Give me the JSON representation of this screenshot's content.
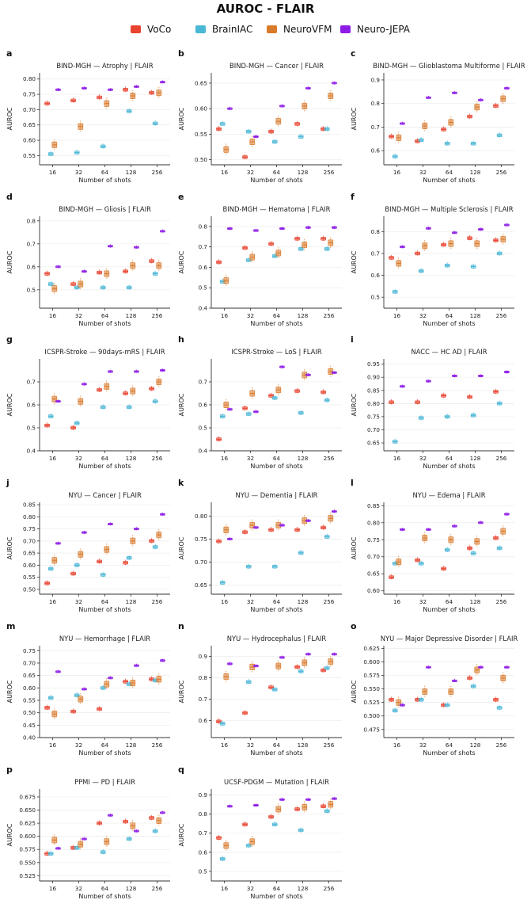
{
  "title": "AUROC - FLAIR",
  "legend": [
    {
      "name": "VoCo",
      "color": "#e8432f"
    },
    {
      "name": "BrainIAC",
      "color": "#4bb7d6"
    },
    {
      "name": "NeuroVFM",
      "color": "#d97a2b"
    },
    {
      "name": "Neuro-JEPA",
      "color": "#8e1ce6"
    }
  ],
  "chart_data": [
    {
      "letter": "a",
      "type": "box",
      "title": "BIND-MGH — Atrophy  |  FLAIR",
      "xlabel": "Number of shots",
      "ylabel": "AUROC",
      "categories": [
        "16",
        "32",
        "64",
        "128",
        "256"
      ],
      "ylim": [
        0.52,
        0.82
      ],
      "yticks": [
        0.55,
        0.6,
        0.65,
        0.7,
        0.75,
        0.8
      ],
      "grid": true,
      "series": {
        "VoCo": [
          0.72,
          0.73,
          0.74,
          0.765,
          0.755
        ],
        "BrainIAC": [
          0.555,
          0.56,
          0.58,
          0.695,
          0.655
        ],
        "NeuroVFM": [
          0.585,
          0.645,
          0.72,
          0.745,
          0.755
        ],
        "Neuro-JEPA": [
          0.765,
          0.77,
          0.765,
          0.775,
          0.79
        ]
      }
    },
    {
      "letter": "b",
      "type": "box",
      "title": "BIND-MGH — Cancer  |  FLAIR",
      "xlabel": "Number of shots",
      "ylabel": "AUROC",
      "categories": [
        "16",
        "32",
        "64",
        "128",
        "256"
      ],
      "ylim": [
        0.49,
        0.67
      ],
      "yticks": [
        0.5,
        0.55,
        0.6,
        0.65
      ],
      "grid": true,
      "series": {
        "VoCo": [
          0.56,
          0.505,
          0.555,
          0.57,
          0.56
        ],
        "BrainIAC": [
          0.57,
          0.555,
          0.535,
          0.545,
          0.56
        ],
        "NeuroVFM": [
          0.52,
          0.535,
          0.575,
          0.605,
          0.625
        ],
        "Neuro-JEPA": [
          0.6,
          0.545,
          0.605,
          0.64,
          0.65
        ]
      }
    },
    {
      "letter": "c",
      "type": "box",
      "title": "BIND-MGH — Glioblastoma Multiforme  |  FLAIR",
      "xlabel": "Number of shots",
      "ylabel": "AUROC",
      "categories": [
        "16",
        "32",
        "64",
        "128",
        "256"
      ],
      "ylim": [
        0.54,
        0.93
      ],
      "yticks": [
        0.6,
        0.7,
        0.8,
        0.9
      ],
      "grid": true,
      "series": {
        "VoCo": [
          0.66,
          0.64,
          0.69,
          0.745,
          0.79
        ],
        "BrainIAC": [
          0.575,
          0.645,
          0.63,
          0.63,
          0.665
        ],
        "NeuroVFM": [
          0.655,
          0.705,
          0.72,
          0.785,
          0.82
        ],
        "Neuro-JEPA": [
          0.715,
          0.825,
          0.845,
          0.815,
          0.865
        ]
      }
    },
    {
      "letter": "d",
      "type": "box",
      "title": "BIND-MGH — Gliosis  |  FLAIR",
      "xlabel": "Number of shots",
      "ylabel": "AUROC",
      "categories": [
        "16",
        "32",
        "64",
        "128",
        "256"
      ],
      "ylim": [
        0.42,
        0.82
      ],
      "yticks": [
        0.5,
        0.6,
        0.7,
        0.8
      ],
      "grid": true,
      "series": {
        "VoCo": [
          0.57,
          0.525,
          0.575,
          0.58,
          0.625
        ],
        "BrainIAC": [
          0.525,
          0.51,
          0.51,
          0.51,
          0.57
        ],
        "NeuroVFM": [
          0.505,
          0.525,
          0.57,
          0.605,
          0.605
        ],
        "Neuro-JEPA": [
          0.6,
          0.58,
          0.69,
          0.685,
          0.755
        ]
      }
    },
    {
      "letter": "e",
      "type": "box",
      "title": "BIND-MGH — Hematoma  |  FLAIR",
      "xlabel": "Number of shots",
      "ylabel": "AUROC",
      "categories": [
        "16",
        "32",
        "64",
        "128",
        "256"
      ],
      "ylim": [
        0.4,
        0.85
      ],
      "yticks": [
        0.4,
        0.5,
        0.6,
        0.7,
        0.8
      ],
      "grid": true,
      "series": {
        "VoCo": [
          0.625,
          0.695,
          0.715,
          0.74,
          0.74
        ],
        "BrainIAC": [
          0.53,
          0.635,
          0.655,
          0.69,
          0.69
        ],
        "NeuroVFM": [
          0.535,
          0.65,
          0.67,
          0.71,
          0.72
        ],
        "Neuro-JEPA": [
          0.79,
          0.78,
          0.79,
          0.795,
          0.795
        ]
      }
    },
    {
      "letter": "f",
      "type": "box",
      "title": "BIND-MGH — Multiple Sclerosis  |  FLAIR",
      "xlabel": "Number of shots",
      "ylabel": "AUROC",
      "categories": [
        "16",
        "32",
        "64",
        "128",
        "256"
      ],
      "ylim": [
        0.45,
        0.87
      ],
      "yticks": [
        0.5,
        0.6,
        0.7,
        0.8
      ],
      "grid": true,
      "series": {
        "VoCo": [
          0.68,
          0.7,
          0.74,
          0.77,
          0.76
        ],
        "BrainIAC": [
          0.525,
          0.62,
          0.645,
          0.64,
          0.7
        ],
        "NeuroVFM": [
          0.655,
          0.735,
          0.745,
          0.745,
          0.765
        ],
        "Neuro-JEPA": [
          0.73,
          0.815,
          0.795,
          0.81,
          0.83
        ]
      }
    },
    {
      "letter": "g",
      "type": "box",
      "title": "ICSPR-Stroke — 90days-mRS  |  FLAIR",
      "xlabel": "Number of shots",
      "ylabel": "AUROC",
      "categories": [
        "16",
        "32",
        "64",
        "128",
        "256"
      ],
      "ylim": [
        0.4,
        0.8
      ],
      "yticks": [
        0.4,
        0.5,
        0.6,
        0.7
      ],
      "grid": true,
      "series": {
        "VoCo": [
          0.51,
          0.5,
          0.665,
          0.65,
          0.67
        ],
        "BrainIAC": [
          0.55,
          0.52,
          0.59,
          0.59,
          0.615
        ],
        "NeuroVFM": [
          0.625,
          0.615,
          0.68,
          0.66,
          0.7
        ],
        "Neuro-JEPA": [
          0.615,
          0.69,
          0.745,
          0.745,
          0.75
        ]
      }
    },
    {
      "letter": "h",
      "type": "box",
      "title": "ICSPR-Stroke — LoS  |  FLAIR",
      "xlabel": "Number of shots",
      "ylabel": "AUROC",
      "categories": [
        "16",
        "32",
        "64",
        "128",
        "256"
      ],
      "ylim": [
        0.4,
        0.8
      ],
      "yticks": [
        0.4,
        0.5,
        0.6,
        0.7
      ],
      "grid": true,
      "series": {
        "VoCo": [
          0.45,
          0.585,
          0.64,
          0.66,
          0.655
        ],
        "BrainIAC": [
          0.55,
          0.56,
          0.63,
          0.565,
          0.62
        ],
        "NeuroVFM": [
          0.6,
          0.65,
          0.665,
          0.73,
          0.745
        ],
        "Neuro-JEPA": [
          0.58,
          0.57,
          0.765,
          0.73,
          0.74
        ]
      }
    },
    {
      "letter": "i",
      "type": "box",
      "title": "NACC — HC AD  |  FLAIR",
      "xlabel": "Number of shots",
      "ylabel": "AUROC",
      "categories": [
        "16",
        "32",
        "64",
        "128",
        "256"
      ],
      "ylim": [
        0.62,
        0.97
      ],
      "yticks": [
        0.65,
        0.7,
        0.75,
        0.8,
        0.85,
        0.9,
        0.95
      ],
      "grid": true,
      "series": {
        "VoCo": [
          0.805,
          0.805,
          0.83,
          0.825,
          0.845
        ],
        "BrainIAC": [
          0.655,
          0.745,
          0.75,
          0.755,
          0.8
        ],
        "Neuro-JEPA": [
          0.865,
          0.885,
          0.905,
          0.905,
          0.92
        ]
      }
    },
    {
      "letter": "j",
      "type": "box",
      "title": "NYU — Cancer  |  FLAIR",
      "xlabel": "Number of shots",
      "ylabel": "AUROC",
      "categories": [
        "16",
        "32",
        "64",
        "128",
        "256"
      ],
      "ylim": [
        0.48,
        0.86
      ],
      "yticks": [
        0.5,
        0.55,
        0.6,
        0.65,
        0.7,
        0.75,
        0.8,
        0.85
      ],
      "grid": true,
      "series": {
        "VoCo": [
          0.525,
          0.565,
          0.615,
          0.61,
          0.7
        ],
        "BrainIAC": [
          0.585,
          0.6,
          0.56,
          0.63,
          0.675
        ],
        "NeuroVFM": [
          0.62,
          0.645,
          0.665,
          0.7,
          0.725
        ],
        "Neuro-JEPA": [
          0.69,
          0.735,
          0.77,
          0.75,
          0.81
        ]
      }
    },
    {
      "letter": "k",
      "type": "box",
      "title": "NYU — Dementia  |  FLAIR",
      "xlabel": "Number of shots",
      "ylabel": "AUROC",
      "categories": [
        "16",
        "32",
        "64",
        "128",
        "256"
      ],
      "ylim": [
        0.63,
        0.83
      ],
      "yticks": [
        0.65,
        0.7,
        0.75,
        0.8
      ],
      "grid": true,
      "series": {
        "VoCo": [
          0.745,
          0.765,
          0.77,
          0.77,
          0.775
        ],
        "BrainIAC": [
          0.655,
          0.69,
          0.69,
          0.72,
          0.755
        ],
        "NeuroVFM": [
          0.77,
          0.78,
          0.78,
          0.79,
          0.795
        ],
        "Neuro-JEPA": [
          0.75,
          0.775,
          0.78,
          0.79,
          0.81
        ]
      }
    },
    {
      "letter": "l",
      "type": "box",
      "title": "NYU — Edema  |  FLAIR",
      "xlabel": "Number of shots",
      "ylabel": "AUROC",
      "categories": [
        "16",
        "32",
        "64",
        "128",
        "256"
      ],
      "ylim": [
        0.59,
        0.86
      ],
      "yticks": [
        0.6,
        0.65,
        0.7,
        0.75,
        0.8,
        0.85
      ],
      "grid": true,
      "series": {
        "VoCo": [
          0.64,
          0.69,
          0.665,
          0.725,
          0.755
        ],
        "BrainIAC": [
          0.68,
          0.68,
          0.72,
          0.71,
          0.725
        ],
        "NeuroVFM": [
          0.685,
          0.755,
          0.75,
          0.745,
          0.775
        ],
        "Neuro-JEPA": [
          0.78,
          0.78,
          0.79,
          0.8,
          0.825
        ]
      }
    },
    {
      "letter": "m",
      "type": "box",
      "title": "NYU — Hemorrhage  |  FLAIR",
      "xlabel": "Number of shots",
      "ylabel": "AUROC",
      "categories": [
        "16",
        "32",
        "64",
        "128",
        "256"
      ],
      "ylim": [
        0.4,
        0.77
      ],
      "yticks": [
        0.4,
        0.45,
        0.5,
        0.55,
        0.6,
        0.65,
        0.7,
        0.75
      ],
      "grid": true,
      "series": {
        "VoCo": [
          0.52,
          0.505,
          0.515,
          0.625,
          0.635
        ],
        "BrainIAC": [
          0.56,
          0.57,
          0.6,
          0.615,
          0.63
        ],
        "NeuroVFM": [
          0.495,
          0.555,
          0.615,
          0.62,
          0.635
        ],
        "Neuro-JEPA": [
          0.665,
          0.595,
          0.64,
          0.69,
          0.71
        ]
      }
    },
    {
      "letter": "n",
      "type": "box",
      "title": "NYU — Hydrocephalus  |  FLAIR",
      "xlabel": "Number of shots",
      "ylabel": "AUROC",
      "categories": [
        "16",
        "32",
        "64",
        "128",
        "256"
      ],
      "ylim": [
        0.52,
        0.95
      ],
      "yticks": [
        0.6,
        0.7,
        0.8,
        0.9
      ],
      "grid": true,
      "series": {
        "VoCo": [
          0.595,
          0.635,
          0.755,
          0.85,
          0.835
        ],
        "BrainIAC": [
          0.585,
          0.78,
          0.745,
          0.83,
          0.845
        ],
        "NeuroVFM": [
          0.805,
          0.85,
          0.855,
          0.87,
          0.875
        ],
        "Neuro-JEPA": [
          0.865,
          0.855,
          0.895,
          0.91,
          0.91
        ]
      }
    },
    {
      "letter": "o",
      "type": "box",
      "title": "NYU — Major Depressive Disorder  |  FLAIR",
      "xlabel": "Number of shots",
      "ylabel": "AUROC",
      "categories": [
        "16",
        "32",
        "64",
        "128",
        "256"
      ],
      "ylim": [
        0.46,
        0.63
      ],
      "yticks": [
        0.475,
        0.5,
        0.525,
        0.55,
        0.575,
        0.6,
        0.625
      ],
      "grid": true,
      "series": {
        "VoCo": [
          0.53,
          0.53,
          0.52,
          0.57,
          0.53
        ],
        "BrainIAC": [
          0.51,
          0.53,
          0.52,
          0.555,
          0.515
        ],
        "NeuroVFM": [
          0.525,
          0.545,
          0.545,
          0.585,
          0.57
        ],
        "Neuro-JEPA": [
          0.52,
          0.59,
          0.565,
          0.59,
          0.59
        ]
      }
    },
    {
      "letter": "p",
      "type": "box",
      "title": "PPMI — PD  |  FLAIR",
      "xlabel": "Number of shots",
      "ylabel": "AUROC",
      "categories": [
        "16",
        "32",
        "64",
        "128",
        "256"
      ],
      "ylim": [
        0.515,
        0.69
      ],
      "yticks": [
        0.525,
        0.55,
        0.575,
        0.6,
        0.625,
        0.65,
        0.675
      ],
      "grid": true,
      "series": {
        "VoCo": [
          0.567,
          0.578,
          0.625,
          0.628,
          0.635
        ],
        "BrainIAC": [
          0.567,
          0.578,
          0.57,
          0.595,
          0.61
        ],
        "NeuroVFM": [
          0.593,
          0.585,
          0.59,
          0.62,
          0.63
        ],
        "Neuro-JEPA": [
          0.577,
          0.595,
          0.64,
          0.61,
          0.645
        ]
      }
    },
    {
      "letter": "q",
      "type": "box",
      "title": "UCSF-PDGM — Mutation  |  FLAIR",
      "xlabel": "Number of shots",
      "ylabel": "AUROC",
      "categories": [
        "16",
        "32",
        "64",
        "128",
        "256"
      ],
      "ylim": [
        0.45,
        0.93
      ],
      "yticks": [
        0.5,
        0.6,
        0.7,
        0.8,
        0.9
      ],
      "grid": true,
      "series": {
        "VoCo": [
          0.675,
          0.745,
          0.785,
          0.825,
          0.84
        ],
        "BrainIAC": [
          0.565,
          0.635,
          0.745,
          0.715,
          0.815
        ],
        "NeuroVFM": [
          0.635,
          0.655,
          0.825,
          0.835,
          0.85
        ],
        "Neuro-JEPA": [
          0.84,
          0.845,
          0.875,
          0.875,
          0.88
        ]
      }
    }
  ]
}
